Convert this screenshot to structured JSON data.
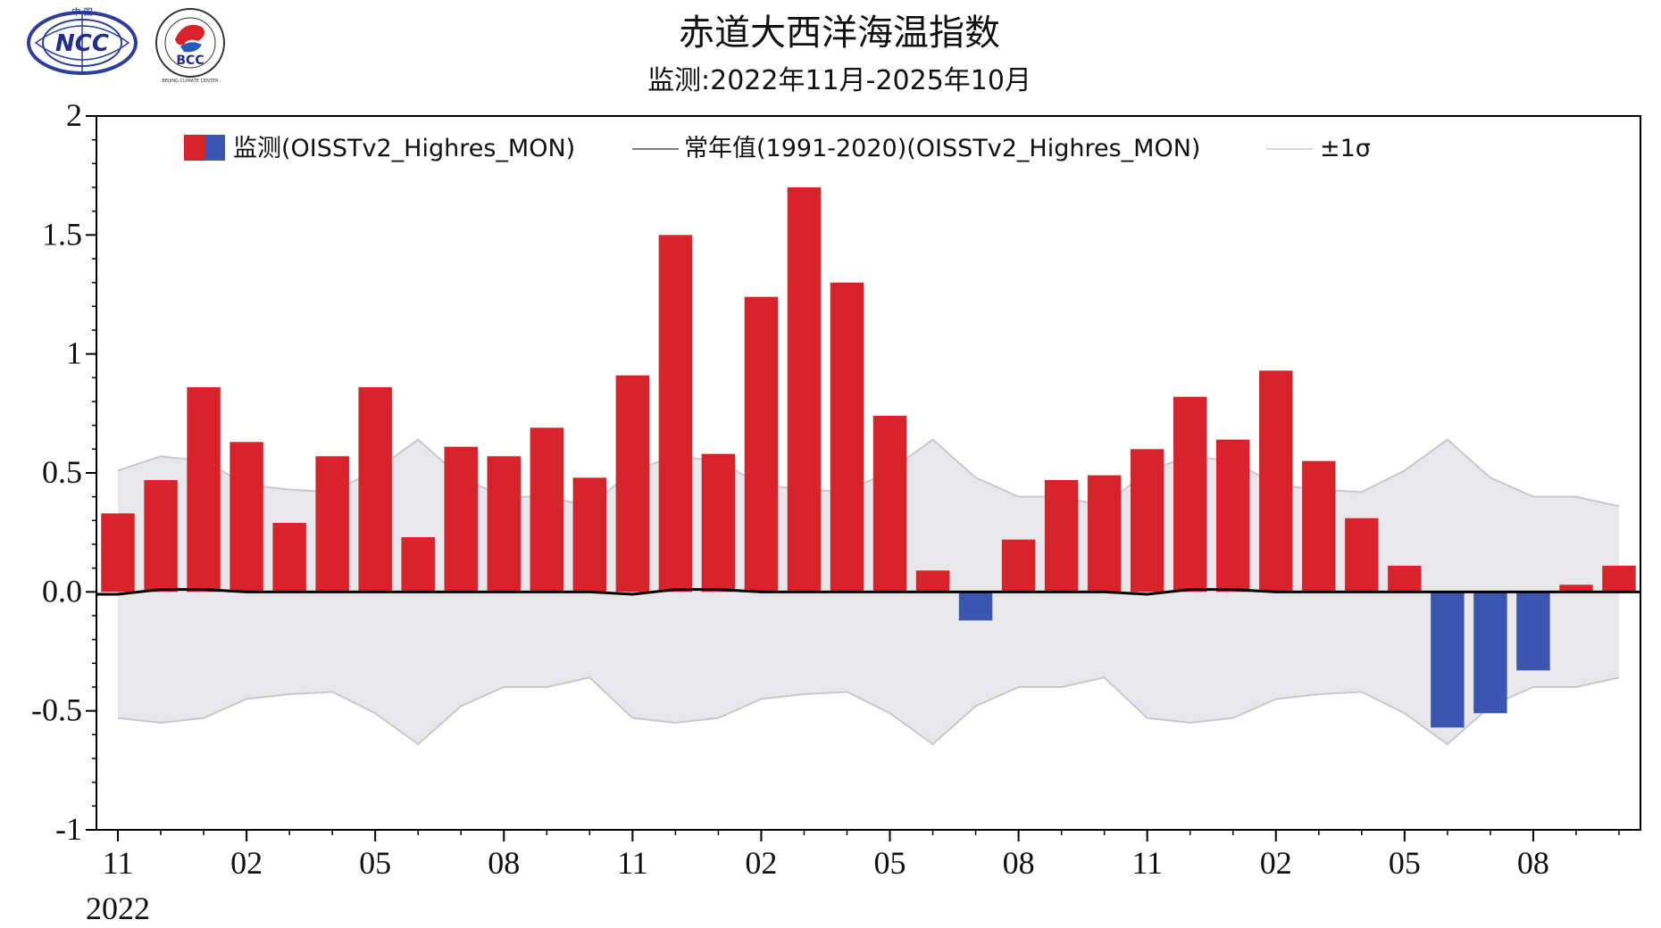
{
  "logos": {
    "ncc": {
      "text": "NCC",
      "top_text": "中 国"
    },
    "bcc": {
      "text": "BCC",
      "ring_text": "BEIJING CLIMATE CENTER"
    }
  },
  "chart_data": {
    "type": "bar",
    "title": "赤道大西洋海温指数",
    "subtitle": "监测:2022年11月-2025年10月",
    "ylim": [
      -1,
      2
    ],
    "yticks": [
      {
        "value": 2,
        "label": "2"
      },
      {
        "value": 1.5,
        "label": "1.5"
      },
      {
        "value": 1,
        "label": "1"
      },
      {
        "value": 0.5,
        "label": "0.5"
      },
      {
        "value": 0,
        "label": "0.0"
      },
      {
        "value": -0.5,
        "label": "-0.5"
      },
      {
        "value": -1,
        "label": "-1"
      }
    ],
    "xticks": [
      {
        "index": 0,
        "label": "11"
      },
      {
        "index": 3,
        "label": "02"
      },
      {
        "index": 6,
        "label": "05"
      },
      {
        "index": 9,
        "label": "08"
      },
      {
        "index": 12,
        "label": "11"
      },
      {
        "index": 15,
        "label": "02"
      },
      {
        "index": 18,
        "label": "05"
      },
      {
        "index": 21,
        "label": "08"
      },
      {
        "index": 24,
        "label": "11"
      },
      {
        "index": 27,
        "label": "02"
      },
      {
        "index": 30,
        "label": "05"
      },
      {
        "index": 33,
        "label": "08"
      }
    ],
    "year_label": "2022",
    "legend": {
      "monitor": "监测(OISSTv2_Highres_MON)",
      "normal": "常年值(1991-2020)(OISSTv2_Highres_MON)",
      "sigma": "±1σ"
    },
    "colors": {
      "positive": "#d9232a",
      "negative": "#3a56b0",
      "band": "#e8e8ea",
      "band_edge": "#c8c8cc",
      "normal_line": "#000000"
    },
    "values": [
      0.33,
      0.47,
      0.86,
      0.63,
      0.29,
      0.57,
      0.86,
      0.23,
      0.61,
      0.57,
      0.69,
      0.48,
      0.91,
      1.5,
      0.58,
      1.24,
      1.7,
      1.3,
      0.74,
      0.09,
      -0.12,
      0.22,
      0.47,
      0.49,
      0.6,
      0.82,
      0.64,
      0.93,
      0.55,
      0.31,
      0.11,
      -0.57,
      -0.51,
      -0.33,
      0.03,
      0.11
    ],
    "sigma": [
      0.52,
      0.56,
      0.54,
      0.45,
      0.43,
      0.42,
      0.51,
      0.64,
      0.48,
      0.4,
      0.4,
      0.36,
      0.52,
      0.56,
      0.54,
      0.45,
      0.43,
      0.42,
      0.51,
      0.64,
      0.48,
      0.4,
      0.4,
      0.36,
      0.52,
      0.56,
      0.54,
      0.45,
      0.43,
      0.42,
      0.51,
      0.64,
      0.48,
      0.4,
      0.4,
      0.36
    ],
    "normal": [
      -0.01,
      0.01,
      0.01,
      0.0,
      0.0,
      0.0,
      0.0,
      0.0,
      0.0,
      0.0,
      0.0,
      0.0,
      -0.01,
      0.01,
      0.01,
      0.0,
      0.0,
      0.0,
      0.0,
      0.0,
      0.0,
      0.0,
      0.0,
      0.0,
      -0.01,
      0.01,
      0.01,
      0.0,
      0.0,
      0.0,
      0.0,
      0.0,
      0.0,
      0.0,
      0.0,
      0.0
    ]
  }
}
